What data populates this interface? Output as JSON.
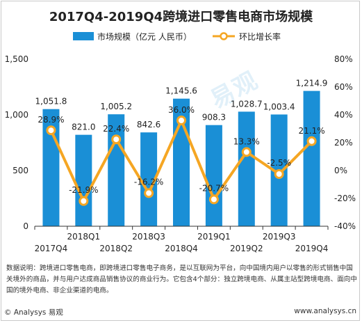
{
  "chart_data": {
    "type": "bar",
    "title": "2017Q4-2019Q4跨境进口零售电商市场规模",
    "categories": [
      "2017Q4",
      "2018Q1",
      "2018Q2",
      "2018Q3",
      "2018Q4",
      "2019Q1",
      "2019Q2",
      "2019Q3",
      "2019Q4"
    ],
    "series": [
      {
        "name": "市场规模（亿元 人民币）",
        "type": "bar",
        "axis": "left",
        "values": [
          1051.8,
          821.0,
          1005.2,
          842.6,
          1145.6,
          908.3,
          1028.7,
          1003.4,
          1214.9
        ],
        "labels": [
          "1,051.8",
          "821.0",
          "1,005.2",
          "842.6",
          "1,145.6",
          "908.3",
          "1,028.7",
          "1,003.4",
          "1,214.9"
        ],
        "color": "#1a8fd6"
      },
      {
        "name": "环比增长率",
        "type": "line",
        "axis": "right",
        "values": [
          28.9,
          -21.9,
          22.4,
          -16.2,
          36.0,
          -20.7,
          13.3,
          -2.5,
          21.1
        ],
        "labels": [
          "28.9%",
          "-21.9%",
          "22.4%",
          "-16.2%",
          "36.0%",
          "-20.7%",
          "13.3%",
          "-2.5%",
          "21.1%"
        ],
        "color": "#f5a623"
      }
    ],
    "y_left": {
      "ylim": [
        0,
        1500
      ],
      "ticks": [
        "0",
        "500",
        "1,000",
        "1,500"
      ]
    },
    "y_right": {
      "ylim": [
        -40,
        80
      ],
      "ticks": [
        "-40%",
        "-20%",
        "0%",
        "20%",
        "40%",
        "60%",
        "80%"
      ]
    },
    "legend_position": "top",
    "grid": false
  },
  "note": "数据说明：跨境进口零售电商，即跨境进口零售电子商务，是以互联网为平台，向中国境内用户以零售的形式销售中国关境外的商品，并与用户达成商品销售协议的商业行为。它包含4个部分：独立跨境电商、从属主站型跨境电商、面向中国的境外电商、非企业渠道的电商。",
  "footer": {
    "left": "© Analysys 易观",
    "right": "www.analysys.cn"
  },
  "watermark": "易观",
  "colors": {
    "bar": "#1a8fd6",
    "line": "#f5a623"
  }
}
